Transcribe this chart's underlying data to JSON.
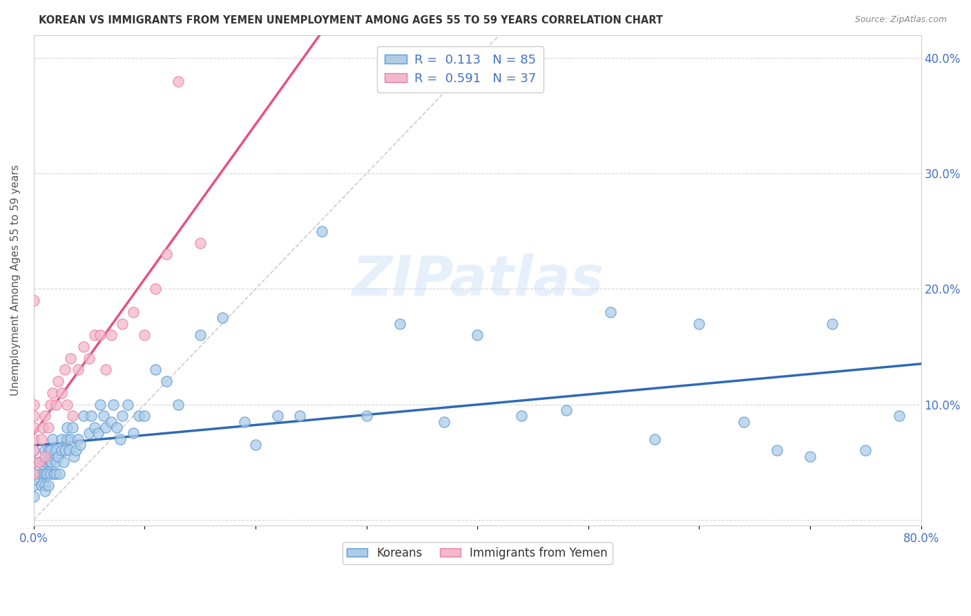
{
  "title": "KOREAN VS IMMIGRANTS FROM YEMEN UNEMPLOYMENT AMONG AGES 55 TO 59 YEARS CORRELATION CHART",
  "source": "Source: ZipAtlas.com",
  "ylabel": "Unemployment Among Ages 55 to 59 years",
  "xlim": [
    0,
    0.8
  ],
  "ylim": [
    -0.005,
    0.42
  ],
  "xtick_positions": [
    0.0,
    0.1,
    0.2,
    0.3,
    0.4,
    0.5,
    0.6,
    0.7,
    0.8
  ],
  "xticklabels": [
    "0.0%",
    "",
    "",
    "",
    "",
    "",
    "",
    "",
    "80.0%"
  ],
  "ytick_positions": [
    0.0,
    0.1,
    0.2,
    0.3,
    0.4
  ],
  "yticklabels_right": [
    "",
    "10.0%",
    "20.0%",
    "30.0%",
    "40.0%"
  ],
  "korean_color": "#aecce8",
  "korean_edge_color": "#5b9bd5",
  "yemen_color": "#f4b8cc",
  "yemen_edge_color": "#e87fa0",
  "korean_R": 0.113,
  "korean_N": 85,
  "yemen_R": 0.591,
  "yemen_N": 37,
  "watermark_text": "ZIPatlas",
  "background_color": "#ffffff",
  "grid_color": "#d0d0d0",
  "legend_label_korean": "Koreans",
  "legend_label_yemen": "Immigrants from Yemen",
  "korean_line_color": "#2e6ab5",
  "yemen_line_color": "#e85080",
  "diag_color": "#cccccc",
  "korean_x": [
    0.0,
    0.0,
    0.0,
    0.0,
    0.0,
    0.0,
    0.005,
    0.005,
    0.007,
    0.008,
    0.01,
    0.01,
    0.01,
    0.01,
    0.01,
    0.012,
    0.012,
    0.013,
    0.013,
    0.015,
    0.015,
    0.015,
    0.016,
    0.017,
    0.018,
    0.02,
    0.02,
    0.02,
    0.022,
    0.023,
    0.025,
    0.025,
    0.027,
    0.028,
    0.03,
    0.03,
    0.032,
    0.033,
    0.035,
    0.036,
    0.038,
    0.04,
    0.042,
    0.045,
    0.05,
    0.052,
    0.055,
    0.058,
    0.06,
    0.063,
    0.065,
    0.07,
    0.072,
    0.075,
    0.078,
    0.08,
    0.085,
    0.09,
    0.095,
    0.1,
    0.11,
    0.12,
    0.13,
    0.15,
    0.17,
    0.19,
    0.2,
    0.22,
    0.24,
    0.26,
    0.3,
    0.33,
    0.37,
    0.4,
    0.44,
    0.48,
    0.52,
    0.56,
    0.6,
    0.64,
    0.67,
    0.7,
    0.72,
    0.75,
    0.78
  ],
  "korean_y": [
    0.03,
    0.04,
    0.05,
    0.06,
    0.02,
    0.035,
    0.04,
    0.05,
    0.03,
    0.04,
    0.04,
    0.05,
    0.06,
    0.03,
    0.025,
    0.05,
    0.04,
    0.06,
    0.03,
    0.04,
    0.05,
    0.06,
    0.05,
    0.07,
    0.04,
    0.05,
    0.06,
    0.04,
    0.055,
    0.04,
    0.06,
    0.07,
    0.05,
    0.06,
    0.07,
    0.08,
    0.06,
    0.07,
    0.08,
    0.055,
    0.06,
    0.07,
    0.065,
    0.09,
    0.075,
    0.09,
    0.08,
    0.075,
    0.1,
    0.09,
    0.08,
    0.085,
    0.1,
    0.08,
    0.07,
    0.09,
    0.1,
    0.075,
    0.09,
    0.09,
    0.13,
    0.12,
    0.1,
    0.16,
    0.175,
    0.085,
    0.065,
    0.09,
    0.09,
    0.25,
    0.09,
    0.17,
    0.085,
    0.16,
    0.09,
    0.095,
    0.18,
    0.07,
    0.17,
    0.085,
    0.06,
    0.055,
    0.17,
    0.06,
    0.09
  ],
  "yemen_x": [
    0.0,
    0.0,
    0.0,
    0.0,
    0.0,
    0.0,
    0.0,
    0.0,
    0.005,
    0.007,
    0.008,
    0.01,
    0.01,
    0.013,
    0.015,
    0.017,
    0.02,
    0.022,
    0.025,
    0.028,
    0.03,
    0.033,
    0.035,
    0.04,
    0.045,
    0.05,
    0.055,
    0.06,
    0.065,
    0.07,
    0.08,
    0.09,
    0.1,
    0.11,
    0.12,
    0.13,
    0.15
  ],
  "yemen_y": [
    0.04,
    0.05,
    0.06,
    0.07,
    0.08,
    0.09,
    0.1,
    0.19,
    0.05,
    0.07,
    0.08,
    0.055,
    0.09,
    0.08,
    0.1,
    0.11,
    0.1,
    0.12,
    0.11,
    0.13,
    0.1,
    0.14,
    0.09,
    0.13,
    0.15,
    0.14,
    0.16,
    0.16,
    0.13,
    0.16,
    0.17,
    0.18,
    0.16,
    0.2,
    0.23,
    0.38,
    0.24
  ]
}
